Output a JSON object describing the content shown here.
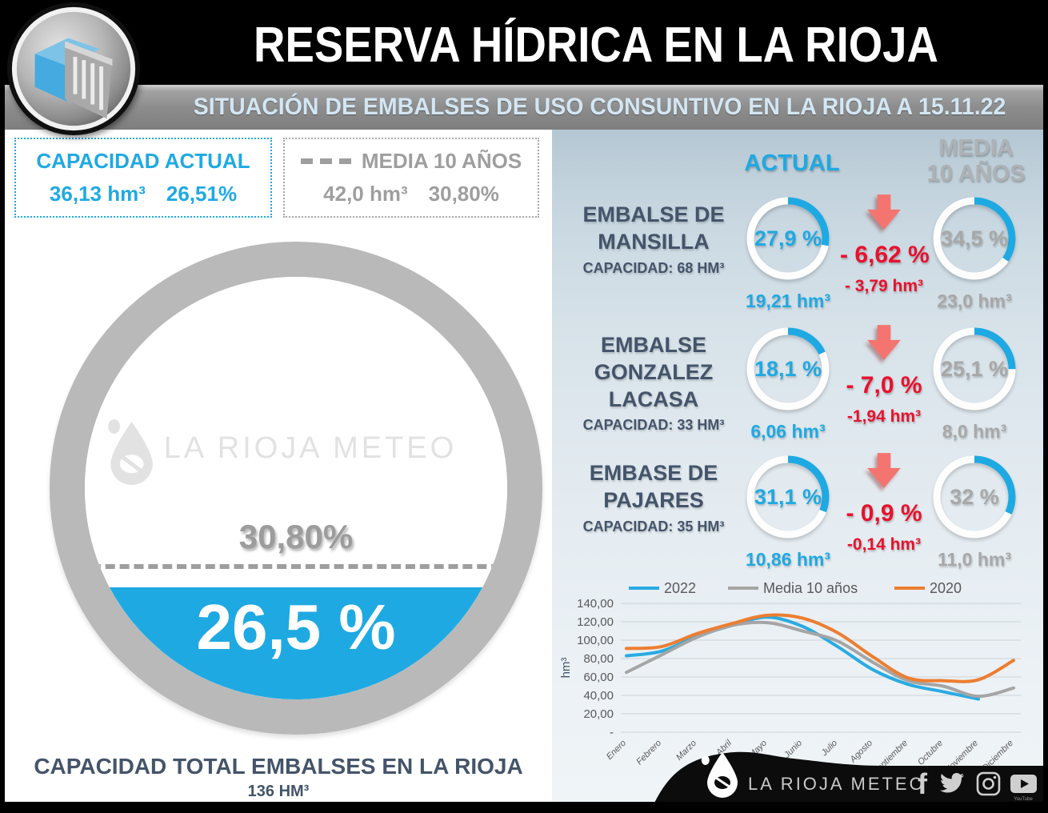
{
  "header": {
    "title": "RESERVA HÍDRICA EN LA RIOJA",
    "subtitle": "SITUACIÓN DE EMBALSES DE USO CONSUNTIVO EN LA RIOJA A 15.11.22"
  },
  "summary": {
    "actual": {
      "label": "CAPACIDAD ACTUAL",
      "volume": "36,13 hm³",
      "percent": "26,51%"
    },
    "media": {
      "label": "MEDIA 10 AÑOS",
      "volume": "42,0 hm³",
      "percent": "30,80%"
    }
  },
  "gauge": {
    "actual_percent": 26.5,
    "media_percent": 30.8,
    "actual_percent_label": "26,5 %",
    "media_percent_label": "30,80%",
    "watermark": "LA RIOJA METEO",
    "caption": "CAPACIDAD TOTAL EMBALSES EN LA RIOJA",
    "caption_capacity": "136 HM³"
  },
  "columns": {
    "actual": "ACTUAL",
    "media_line1": "MEDIA",
    "media_line2": "10 AÑOS"
  },
  "reservoirs": [
    {
      "name_line1": "EMBALSE DE",
      "name_line2": "MANSILLA",
      "capacity": "CAPACIDAD: 68 HM³",
      "actual_pct": 27.9,
      "actual_pct_label": "27,9 %",
      "actual_vol": "19,21 hm³",
      "delta_pct": "- 6,62 %",
      "delta_vol": "- 3,79 hm³",
      "media_pct": 34.5,
      "media_pct_label": "34,5 %",
      "media_vol": "23,0 hm³"
    },
    {
      "name_line1": "EMBALSE",
      "name_line2": "GONZALEZ LACASA",
      "capacity": "CAPACIDAD: 33 HM³",
      "actual_pct": 18.1,
      "actual_pct_label": "18,1 %",
      "actual_vol": "6,06 hm³",
      "delta_pct": "- 7,0 %",
      "delta_vol": "-1,94 hm³",
      "media_pct": 25.1,
      "media_pct_label": "25,1 %",
      "media_vol": "8,0 hm³"
    },
    {
      "name_line1": "EMBASE DE",
      "name_line2": "PAJARES",
      "capacity": "CAPACIDAD: 35 HM³",
      "actual_pct": 31.1,
      "actual_pct_label": "31,1 %",
      "actual_vol": "10,86 hm³",
      "delta_pct": "- 0,9 %",
      "delta_vol": "-0,14 hm³",
      "media_pct": 32,
      "media_pct_label": "32 %",
      "media_vol": "11,0 hm³"
    }
  ],
  "chart_data": {
    "type": "line",
    "title": "",
    "xlabel": "",
    "ylabel": "hm³",
    "ylim": [
      0,
      140
    ],
    "grid": true,
    "legend_position": "top",
    "x": [
      "Enero",
      "Febrero",
      "Marzo",
      "Abril",
      "Mayo",
      "Junio",
      "Julio",
      "Agosto",
      "Septiembre",
      "Octubre",
      "Noviembre",
      "Diciembre"
    ],
    "y_ticks": [
      "140,00",
      "120,00",
      "100,00",
      "80,00",
      "60,00",
      "40,00",
      "20,00",
      "-"
    ],
    "y_tick_values": [
      140,
      120,
      100,
      80,
      60,
      40,
      20,
      0
    ],
    "series": [
      {
        "name": "2022",
        "color": "#29ABE2",
        "values": [
          83,
          88,
          104,
          116,
          125,
          115,
          93,
          68,
          52,
          44,
          36,
          null
        ]
      },
      {
        "name": "Media 10 años",
        "color": "#A5A5A5",
        "values": [
          65,
          84,
          103,
          116,
          119,
          110,
          99,
          76,
          56,
          50,
          39,
          48
        ]
      },
      {
        "name": "2020",
        "color": "#ED7D31",
        "values": [
          91,
          93,
          107,
          118,
          127,
          124,
          108,
          82,
          59,
          56,
          57,
          78
        ]
      }
    ]
  },
  "footer": {
    "brand": "LA RIOJA METEO",
    "social": [
      "facebook",
      "twitter",
      "instagram",
      "youtube"
    ]
  },
  "colors": {
    "accent_blue": "#1FA9E2",
    "slate": "#44546A",
    "gray": "#A6A6A6",
    "red": "#E8112D",
    "salmon": "#F4756F"
  }
}
